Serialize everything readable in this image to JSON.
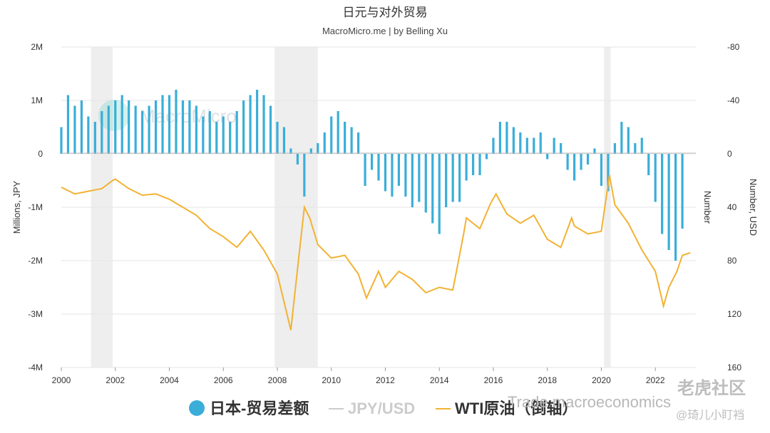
{
  "chart_data": {
    "type": "bar+line",
    "title": "日元与对外贸易",
    "subtitle": "MacroMicro.me | by Belling Xu",
    "x_range": [
      2000.0,
      2023.5
    ],
    "x_ticks": [
      "2000",
      "2002",
      "2004",
      "2006",
      "2008",
      "2010",
      "2012",
      "2014",
      "2016",
      "2018",
      "2020",
      "2022"
    ],
    "y_left": {
      "label": "Millions, JPY",
      "range": [
        -4,
        2
      ],
      "ticks": [
        "2M",
        "1M",
        "0",
        "-1M",
        "-2M",
        "-3M",
        "-4M"
      ],
      "tick_values": [
        2,
        1,
        0,
        -1,
        -2,
        -3,
        -4
      ]
    },
    "y_right_1": {
      "label": "Number",
      "inverted": true,
      "range": [
        -80,
        160
      ],
      "ticks": [
        "-80",
        "-40",
        "0",
        "40",
        "80",
        "120",
        "160"
      ],
      "tick_values": [
        -80,
        -40,
        0,
        40,
        80,
        120,
        160
      ]
    },
    "y_right_2": {
      "label": "Number, USD"
    },
    "recession_bands": [
      [
        2001.1,
        2001.9
      ],
      [
        2007.9,
        2009.5
      ],
      [
        2020.1,
        2020.35
      ]
    ],
    "colors": {
      "trade": "#3aaed8",
      "jpy": "#cccccc",
      "wti": "#f2b233",
      "band": "#eeeeee"
    },
    "series": [
      {
        "name": "日本-贸易差额",
        "type": "bar",
        "unit": "Millions JPY (M = million)",
        "points": [
          [
            2000.0,
            0.5
          ],
          [
            2000.25,
            1.1
          ],
          [
            2000.5,
            0.9
          ],
          [
            2000.75,
            1.0
          ],
          [
            2001.0,
            0.7
          ],
          [
            2001.25,
            0.6
          ],
          [
            2001.5,
            0.8
          ],
          [
            2001.75,
            0.9
          ],
          [
            2002.0,
            1.0
          ],
          [
            2002.25,
            1.1
          ],
          [
            2002.5,
            1.0
          ],
          [
            2002.75,
            0.9
          ],
          [
            2003.0,
            0.8
          ],
          [
            2003.25,
            0.9
          ],
          [
            2003.5,
            1.0
          ],
          [
            2003.75,
            1.1
          ],
          [
            2004.0,
            1.1
          ],
          [
            2004.25,
            1.2
          ],
          [
            2004.5,
            1.0
          ],
          [
            2004.75,
            1.0
          ],
          [
            2005.0,
            0.9
          ],
          [
            2005.25,
            0.7
          ],
          [
            2005.5,
            0.8
          ],
          [
            2005.75,
            0.6
          ],
          [
            2006.0,
            0.7
          ],
          [
            2006.25,
            0.6
          ],
          [
            2006.5,
            0.8
          ],
          [
            2006.75,
            1.0
          ],
          [
            2007.0,
            1.1
          ],
          [
            2007.25,
            1.2
          ],
          [
            2007.5,
            1.1
          ],
          [
            2007.75,
            0.9
          ],
          [
            2008.0,
            0.6
          ],
          [
            2008.25,
            0.5
          ],
          [
            2008.5,
            0.1
          ],
          [
            2008.75,
            -0.2
          ],
          [
            2009.0,
            -0.8
          ],
          [
            2009.25,
            0.1
          ],
          [
            2009.5,
            0.2
          ],
          [
            2009.75,
            0.4
          ],
          [
            2010.0,
            0.7
          ],
          [
            2010.25,
            0.8
          ],
          [
            2010.5,
            0.6
          ],
          [
            2010.75,
            0.5
          ],
          [
            2011.0,
            0.4
          ],
          [
            2011.25,
            -0.6
          ],
          [
            2011.5,
            -0.3
          ],
          [
            2011.75,
            -0.5
          ],
          [
            2012.0,
            -0.7
          ],
          [
            2012.25,
            -0.8
          ],
          [
            2012.5,
            -0.6
          ],
          [
            2012.75,
            -0.8
          ],
          [
            2013.0,
            -1.0
          ],
          [
            2013.25,
            -0.9
          ],
          [
            2013.5,
            -1.1
          ],
          [
            2013.75,
            -1.3
          ],
          [
            2014.0,
            -1.5
          ],
          [
            2014.25,
            -1.0
          ],
          [
            2014.5,
            -0.9
          ],
          [
            2014.75,
            -0.9
          ],
          [
            2015.0,
            -0.5
          ],
          [
            2015.25,
            -0.4
          ],
          [
            2015.5,
            -0.4
          ],
          [
            2015.75,
            -0.1
          ],
          [
            2016.0,
            0.3
          ],
          [
            2016.25,
            0.6
          ],
          [
            2016.5,
            0.6
          ],
          [
            2016.75,
            0.5
          ],
          [
            2017.0,
            0.4
          ],
          [
            2017.25,
            0.3
          ],
          [
            2017.5,
            0.3
          ],
          [
            2017.75,
            0.4
          ],
          [
            2018.0,
            -0.1
          ],
          [
            2018.25,
            0.3
          ],
          [
            2018.5,
            0.2
          ],
          [
            2018.75,
            -0.3
          ],
          [
            2019.0,
            -0.5
          ],
          [
            2019.25,
            -0.3
          ],
          [
            2019.5,
            -0.2
          ],
          [
            2019.75,
            0.1
          ],
          [
            2020.0,
            -0.6
          ],
          [
            2020.25,
            -0.7
          ],
          [
            2020.5,
            0.2
          ],
          [
            2020.75,
            0.6
          ],
          [
            2021.0,
            0.5
          ],
          [
            2021.25,
            0.2
          ],
          [
            2021.5,
            0.3
          ],
          [
            2021.75,
            -0.4
          ],
          [
            2022.0,
            -0.9
          ],
          [
            2022.25,
            -1.5
          ],
          [
            2022.5,
            -1.8
          ],
          [
            2022.75,
            -2.0
          ],
          [
            2023.0,
            -1.4
          ]
        ]
      },
      {
        "name": "JPY/USD",
        "type": "line",
        "hidden": true,
        "points": []
      },
      {
        "name": "WTI原油（倒轴）",
        "type": "line",
        "axis": "y_right_1",
        "points": [
          [
            2000.0,
            25
          ],
          [
            2000.5,
            30
          ],
          [
            2001.0,
            28
          ],
          [
            2001.5,
            26
          ],
          [
            2001.9,
            20
          ],
          [
            2002.0,
            19
          ],
          [
            2002.5,
            26
          ],
          [
            2003.0,
            31
          ],
          [
            2003.5,
            30
          ],
          [
            2004.0,
            34
          ],
          [
            2004.5,
            40
          ],
          [
            2005.0,
            46
          ],
          [
            2005.5,
            56
          ],
          [
            2006.0,
            62
          ],
          [
            2006.5,
            70
          ],
          [
            2007.0,
            58
          ],
          [
            2007.5,
            72
          ],
          [
            2008.0,
            90
          ],
          [
            2008.5,
            132
          ],
          [
            2008.9,
            58
          ],
          [
            2009.0,
            40
          ],
          [
            2009.2,
            48
          ],
          [
            2009.5,
            68
          ],
          [
            2010.0,
            78
          ],
          [
            2010.5,
            76
          ],
          [
            2011.0,
            90
          ],
          [
            2011.3,
            108
          ],
          [
            2011.75,
            88
          ],
          [
            2012.0,
            100
          ],
          [
            2012.5,
            88
          ],
          [
            2013.0,
            94
          ],
          [
            2013.5,
            104
          ],
          [
            2014.0,
            100
          ],
          [
            2014.5,
            102
          ],
          [
            2014.9,
            60
          ],
          [
            2015.0,
            48
          ],
          [
            2015.5,
            56
          ],
          [
            2015.9,
            37
          ],
          [
            2016.1,
            30
          ],
          [
            2016.5,
            45
          ],
          [
            2017.0,
            52
          ],
          [
            2017.5,
            46
          ],
          [
            2018.0,
            64
          ],
          [
            2018.5,
            70
          ],
          [
            2018.9,
            48
          ],
          [
            2019.0,
            54
          ],
          [
            2019.5,
            60
          ],
          [
            2020.0,
            58
          ],
          [
            2020.3,
            16
          ],
          [
            2020.5,
            38
          ],
          [
            2021.0,
            52
          ],
          [
            2021.5,
            72
          ],
          [
            2022.0,
            88
          ],
          [
            2022.3,
            114
          ],
          [
            2022.5,
            100
          ],
          [
            2022.8,
            88
          ],
          [
            2023.0,
            76
          ],
          [
            2023.3,
            74
          ]
        ]
      }
    ],
    "legend": {
      "position": "bottom-center",
      "entries": [
        "日本-贸易差额",
        "JPY/USD",
        "WTI原油（倒轴）"
      ]
    },
    "grid": true
  },
  "watermarks": {
    "center_logo": "MacroMicro",
    "bottom_right_line1": "Trade macroeconomics",
    "bottom_right_cn": "老虎社区",
    "bottom_right_handle": "@琦儿小盯裆"
  }
}
